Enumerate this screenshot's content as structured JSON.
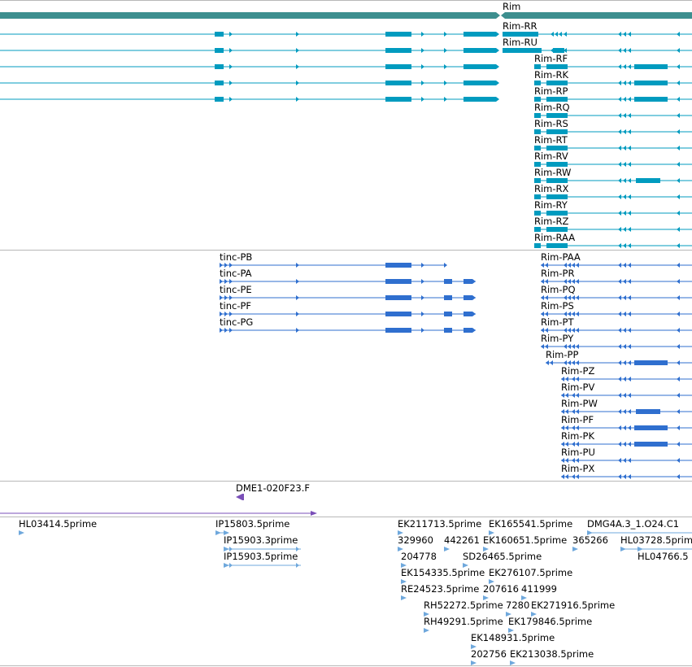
{
  "colors": {
    "gene": "#3d8f8f",
    "flybase_transcript": "#009bbf",
    "refseq_transcript": "#2f6fcf",
    "clone": "#7a4fb8",
    "est": "#6fa8dc",
    "separator": "#b8b8b8"
  },
  "tracks": {
    "gene": {
      "label": "Rim"
    },
    "flybase_transcripts": {
      "labels": [
        "Rim-RR",
        "Rim-RU",
        "Rim-RF",
        "Rim-RK",
        "Rim-RP",
        "Rim-RQ",
        "Rim-RS",
        "Rim-RT",
        "Rim-RV",
        "Rim-RW",
        "Rim-RX",
        "Rim-RY",
        "Rim-RZ",
        "Rim-RAA"
      ]
    },
    "refseq_transcripts": {
      "tinc_labels": [
        "tinc-PB",
        "tinc-PA",
        "tinc-PE",
        "tinc-PF",
        "tinc-PG"
      ],
      "rim_labels": [
        "Rim-PAA",
        "Rim-PR",
        "Rim-PQ",
        "Rim-PS",
        "Rim-PT",
        "Rim-PY",
        "Rim-PP",
        "Rim-PZ",
        "Rim-PV",
        "Rim-PW",
        "Rim-PF",
        "Rim-PK",
        "Rim-PU",
        "Rim-PX"
      ]
    },
    "clones": {
      "label": "DME1-020F23.F"
    },
    "ests": {
      "labels": [
        "HL03414.5prime",
        "IP15803.5prime",
        "IP15903.3prime",
        "IP15903.5prime",
        "EK211713.5prime",
        "EK165541.5prime",
        "DMG4A.3_1.O24.C1",
        "329960",
        "442261",
        "EK160651.5prime",
        "365266",
        "HL03728.5prime",
        "204778",
        "SD26465.5prime",
        "HL04766.5",
        "EK154335.5prime",
        "EK276107.5prime",
        "RE24523.5prime",
        "207616",
        "411999",
        "RH52272.5prime",
        "7280",
        "EK271916.5prime",
        "RH49291.5prime",
        "EK179846.5prime",
        "EK148931.5prime",
        "202756",
        "EK213038.5prime"
      ]
    }
  }
}
